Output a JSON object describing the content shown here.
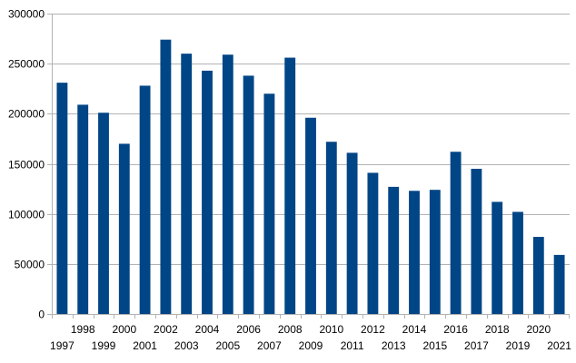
{
  "chart_data": {
    "type": "bar",
    "title": "",
    "xlabel": "",
    "ylabel": "",
    "categories": [
      "1997",
      "1998",
      "1999",
      "2000",
      "2001",
      "2002",
      "2003",
      "2004",
      "2005",
      "2006",
      "2007",
      "2008",
      "2009",
      "2010",
      "2011",
      "2012",
      "2013",
      "2014",
      "2015",
      "2016",
      "2017",
      "2018",
      "2019",
      "2020",
      "2021"
    ],
    "values": [
      231000,
      209000,
      201000,
      170000,
      228000,
      274000,
      260000,
      243000,
      259000,
      238000,
      220000,
      256000,
      196000,
      172000,
      161000,
      141000,
      127000,
      123000,
      124000,
      162000,
      145000,
      112000,
      102000,
      77000,
      59000
    ],
    "ylim": [
      0,
      300000
    ],
    "yticks": [
      "0",
      "50000",
      "100000",
      "150000",
      "200000",
      "250000",
      "300000"
    ],
    "grid": true,
    "legend": "none",
    "bar_color": "#004586",
    "grid_color": "#b3b3b3",
    "axis_color": "#b3b3b3"
  }
}
